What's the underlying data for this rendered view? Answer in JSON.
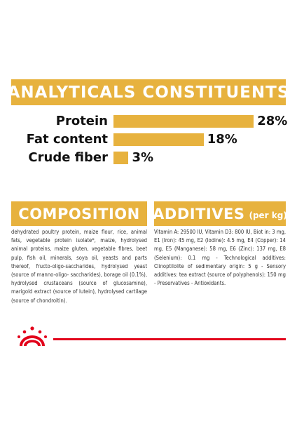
{
  "analytics": {
    "title": "ANALYTICALS CONSTITUENTS",
    "rows": [
      {
        "label": "Protein",
        "value": "28%",
        "percent": 28
      },
      {
        "label": "Fat content",
        "value": "18%",
        "percent": 18
      },
      {
        "label": "Crude fiber",
        "value": "3%",
        "percent": 3
      }
    ]
  },
  "composition": {
    "title": "COMPOSITION",
    "text": "dehydrated poultry protein, maize flour, rice, animal fats, vegetable protein isolate*, maize, hydrolysed animal proteins, maize gluten, vegetable fibres, beet pulp, fish oil, minerals, soya oil, yeasts and parts thereof, fructo-oligo-saccharides, hydrolysed yeast (source of manno-oligo- saccharides), borage oil (0.1%), hydrolysed crustaceans (source of glucosamine), marigold extract (source of lutein), hydrolysed cartilage (source of chondroitin)."
  },
  "additives": {
    "title": "ADDITIVES",
    "unit": "(per kg)",
    "text": "Vitamin A: 29500 IU, Vitamin D3: 800 IU, Biot in: 3 mg, E1 (Iron): 45 mg, E2 (Iodine): 4.5 mg, E4 (Copper): 14 mg, E5 (Manganese): 58 mg, E6 (Zinc): 137 mg, E8 (Selenium): 0.1 mg - Technological additives: Clinoptilolite of sedimentary origin: 5 g - Sensory additives: tea extract (source of polyphenols): 150 mg - Preservatives - Antioxidants."
  },
  "footer": {
    "logo": "royal-canin-crown-logo"
  },
  "colors": {
    "accent": "#e7b23e",
    "brand_red": "#e2001a",
    "text": "#111111"
  }
}
